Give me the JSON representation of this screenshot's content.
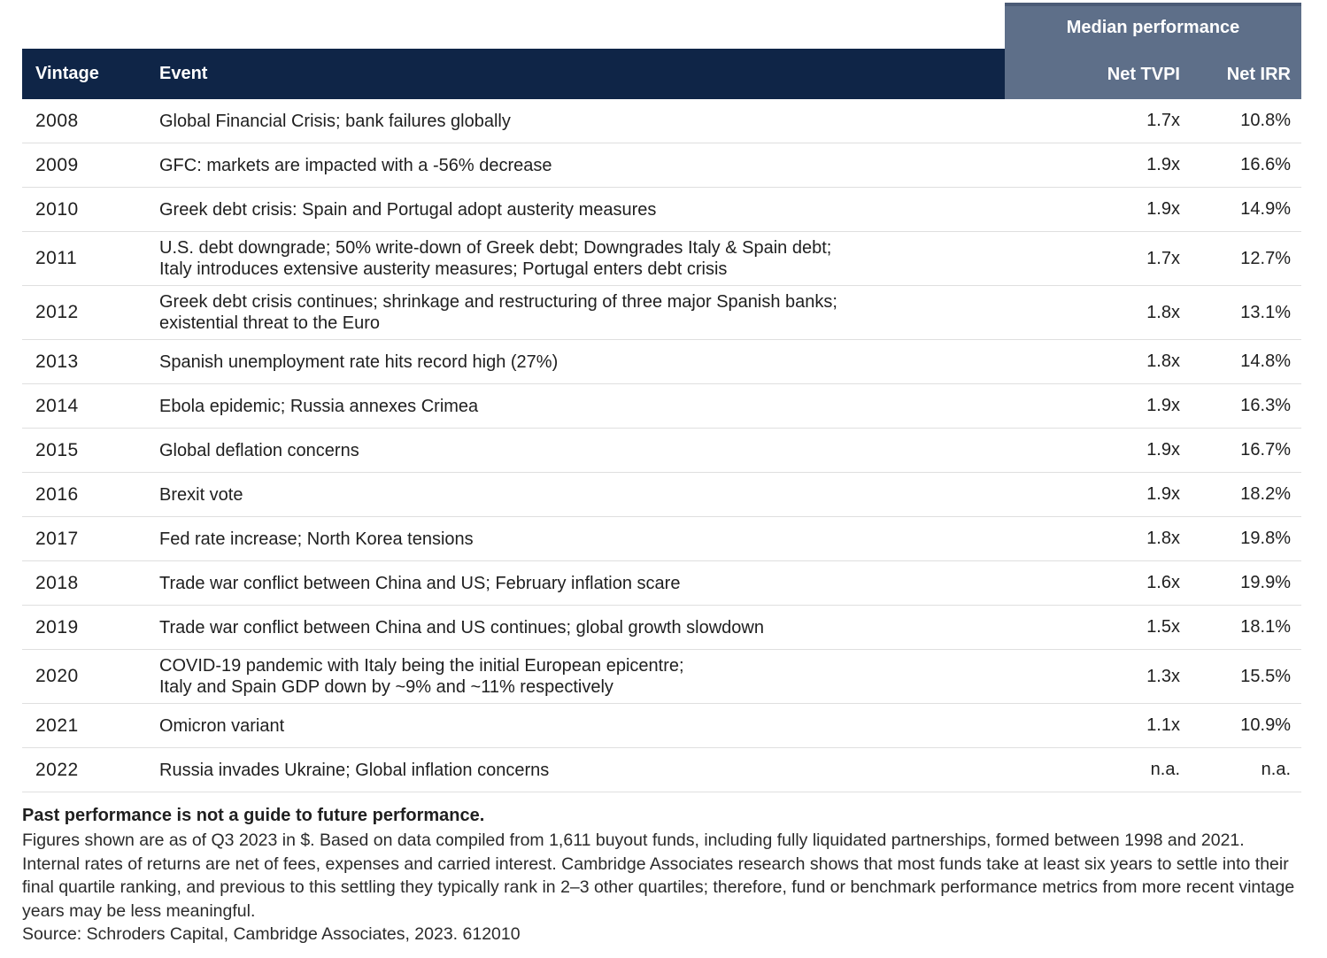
{
  "header": {
    "median_performance_label": "Median performance",
    "columns": {
      "vintage": "Vintage",
      "event": "Event",
      "net_tvpi": "Net TVPI",
      "net_irr": "Net IRR"
    }
  },
  "table": {
    "rows": [
      {
        "vintage": "2008",
        "event": "Global Financial Crisis; bank failures globally",
        "tvpi": "1.7x",
        "irr": "10.8%"
      },
      {
        "vintage": "2009",
        "event": "GFC: markets are impacted with a -56% decrease",
        "tvpi": "1.9x",
        "irr": "16.6%"
      },
      {
        "vintage": "2010",
        "event": "Greek debt crisis: Spain and Portugal adopt austerity measures",
        "tvpi": "1.9x",
        "irr": "14.9%"
      },
      {
        "vintage": "2011",
        "event": "U.S. debt downgrade; 50% write-down of Greek debt; Downgrades Italy & Spain debt;\nItaly introduces extensive austerity measures; Portugal enters debt crisis",
        "tvpi": "1.7x",
        "irr": "12.7%"
      },
      {
        "vintage": "2012",
        "event": "Greek debt crisis continues; shrinkage and restructuring of three major Spanish banks;\nexistential threat to the Euro",
        "tvpi": "1.8x",
        "irr": "13.1%"
      },
      {
        "vintage": "2013",
        "event": "Spanish unemployment rate hits record high (27%)",
        "tvpi": "1.8x",
        "irr": "14.8%"
      },
      {
        "vintage": "2014",
        "event": "Ebola epidemic; Russia annexes Crimea",
        "tvpi": "1.9x",
        "irr": "16.3%"
      },
      {
        "vintage": "2015",
        "event": "Global deflation concerns",
        "tvpi": "1.9x",
        "irr": "16.7%"
      },
      {
        "vintage": "2016",
        "event": "Brexit vote",
        "tvpi": "1.9x",
        "irr": "18.2%"
      },
      {
        "vintage": "2017",
        "event": "Fed rate increase; North Korea tensions",
        "tvpi": "1.8x",
        "irr": "19.8%"
      },
      {
        "vintage": "2018",
        "event": "Trade war conflict between China and US; February inflation scare",
        "tvpi": "1.6x",
        "irr": "19.9%"
      },
      {
        "vintage": "2019",
        "event": "Trade war conflict between China and US continues; global growth slowdown",
        "tvpi": "1.5x",
        "irr": "18.1%"
      },
      {
        "vintage": "2020",
        "event": "COVID-19 pandemic with Italy being the initial European epicentre;\nItaly and Spain GDP down by ~9% and ~11% respectively",
        "tvpi": "1.3x",
        "irr": "15.5%"
      },
      {
        "vintage": "2021",
        "event": "Omicron variant",
        "tvpi": "1.1x",
        "irr": "10.9%"
      },
      {
        "vintage": "2022",
        "event": "Russia invades Ukraine; Global inflation concerns",
        "tvpi": "n.a.",
        "irr": "n.a."
      }
    ]
  },
  "footer": {
    "bold_line": "Past performance is not a guide to future performance.",
    "body": "Figures shown are as of Q3 2023 in $. Based on data compiled from 1,611 buyout funds, including fully liquidated partnerships, formed between 1998 and 2021. Internal rates of returns are net of fees, expenses and carried interest. Cambridge Associates research shows that most funds take at least six years to settle into their final quartile ranking, and previous to this settling they typically rank in 2–3 other quartiles; therefore, fund or benchmark performance metrics from more recent vintage years may be less meaningful.",
    "source": "Source: Schroders Capital, Cambridge Associates, 2023. 612010"
  },
  "colors": {
    "header_navy": "#0f2547",
    "median_band_blue_gray": "#5e6f89",
    "band_top_border": "#4b5b76",
    "row_separator": "#dfdfdf",
    "body_text": "#1f1f1f"
  }
}
